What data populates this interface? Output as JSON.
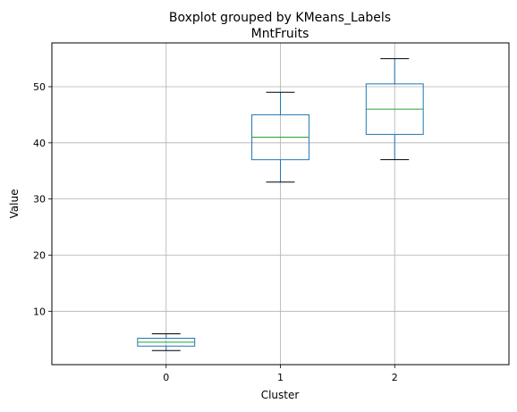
{
  "chart_data": {
    "type": "box",
    "suptitle": "Boxplot grouped by KMeans_Labels",
    "title": "MntFruits",
    "xlabel": "Cluster",
    "ylabel": "Value",
    "categories": [
      "0",
      "1",
      "2"
    ],
    "ylim": [
      0.5,
      57.8
    ],
    "yticks": [
      10,
      20,
      30,
      40,
      50
    ],
    "grid": true,
    "boxes": [
      {
        "category": "0",
        "whislo": 3,
        "q1": 3.8,
        "median": 4.5,
        "q3": 5.2,
        "whishi": 6
      },
      {
        "category": "1",
        "whislo": 33,
        "q1": 37,
        "median": 41,
        "q3": 45,
        "whishi": 49
      },
      {
        "category": "2",
        "whislo": 37,
        "q1": 41.5,
        "median": 46,
        "q3": 50.5,
        "whishi": 55
      }
    ],
    "colors": {
      "box": "#1f77b4",
      "median": "#2ca02c",
      "whisker": "#1f77b4",
      "cap": "#000000",
      "grid": "#b0b0b0"
    }
  }
}
